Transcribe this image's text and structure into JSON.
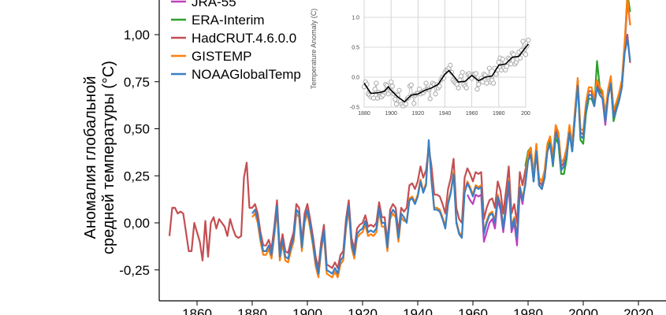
{
  "chart_data": [
    {
      "type": "line",
      "ylabel_lines": [
        "Аномалия глобальной",
        "средней температуры (°C)"
      ],
      "xlabel": "",
      "xlim": [
        1846,
        2022
      ],
      "ylim": [
        -0.41,
        1.2
      ],
      "x_ticks": [
        "1860",
        "1880",
        "1900",
        "1920",
        "1940",
        "1960",
        "1980",
        "2000",
        "2020"
      ],
      "y_ticks": [
        {
          "value": 1.0,
          "label": "1,00"
        },
        {
          "value": 0.75,
          "label": "0,75"
        },
        {
          "value": 0.5,
          "label": "0,50"
        },
        {
          "value": 0.25,
          "label": "0,25"
        },
        {
          "value": 0.0,
          "label": "0,00"
        },
        {
          "value": -0.25,
          "label": "-0,25"
        }
      ],
      "grid": false,
      "legend_position": "top-left",
      "series": [
        {
          "name": "HadCRUT.4.6.0.0",
          "color": "#c44e52",
          "start_year": 1850,
          "values": [
            -0.07,
            0.08,
            0.08,
            0.05,
            0.06,
            0.05,
            -0.05,
            -0.15,
            -0.15,
            0.0,
            -0.05,
            -0.1,
            -0.2,
            0.01,
            -0.18,
            0.0,
            0.03,
            -0.03,
            0.02,
            0.0,
            -0.02,
            -0.07,
            0.02,
            -0.03,
            -0.07,
            -0.08,
            -0.07,
            0.24,
            0.32,
            0.08,
            0.08,
            0.1,
            0.05,
            -0.05,
            -0.12,
            -0.12,
            -0.09,
            -0.14,
            -0.02,
            0.12,
            -0.15,
            -0.06,
            -0.15,
            -0.16,
            -0.1,
            -0.05,
            0.1,
            0.08,
            -0.1,
            0.05,
            0.1,
            0.02,
            -0.07,
            -0.18,
            -0.24,
            -0.1,
            -0.01,
            -0.22,
            -0.23,
            -0.24,
            -0.21,
            -0.24,
            -0.17,
            -0.15,
            0.02,
            0.12,
            -0.08,
            -0.14,
            -0.03,
            -0.01,
            0.0,
            0.04,
            -0.02,
            -0.01,
            -0.02,
            0.0,
            0.11,
            0.03,
            0.03,
            -0.1,
            0.07,
            0.1,
            0.08,
            -0.05,
            0.08,
            0.06,
            0.08,
            0.2,
            0.21,
            0.18,
            0.22,
            0.3,
            0.24,
            0.28,
            0.4,
            0.3,
            0.15,
            0.15,
            0.14,
            0.1,
            0.05,
            0.18,
            0.24,
            0.34,
            0.08,
            0.02,
            0.0,
            0.24,
            0.29,
            0.26,
            0.22,
            0.27,
            0.26,
            0.27,
            0.02,
            0.08,
            0.12,
            0.13,
            0.08,
            0.22,
            0.17,
            0.05,
            0.17,
            0.3,
            0.05,
            0.1,
            0.0,
            0.27,
            0.2,
            0.28,
            0.35,
            0.38,
            0.24,
            0.4,
            0.22,
            0.2,
            0.26,
            0.4,
            0.44,
            0.33,
            0.5,
            0.46,
            0.3,
            0.32,
            0.38,
            0.5,
            0.4,
            0.58,
            0.75,
            0.48,
            0.47,
            0.62,
            0.7,
            0.7,
            0.64,
            0.74,
            0.7,
            0.68,
            0.56,
            0.69,
            0.76,
            0.58,
            0.62,
            0.67,
            0.74,
            0.92,
            1.0,
            0.85
          ]
        },
        {
          "name": "GISTEMP",
          "color": "#ff7f0e",
          "start_year": 1880,
          "values": [
            0.03,
            0.05,
            0.0,
            -0.1,
            -0.17,
            -0.17,
            -0.14,
            -0.19,
            -0.07,
            0.07,
            -0.2,
            -0.11,
            -0.2,
            -0.21,
            -0.15,
            -0.1,
            0.05,
            0.03,
            -0.15,
            0.0,
            0.05,
            -0.03,
            -0.12,
            -0.23,
            -0.29,
            -0.15,
            -0.06,
            -0.27,
            -0.28,
            -0.29,
            -0.26,
            -0.29,
            -0.22,
            -0.2,
            -0.03,
            0.07,
            -0.13,
            -0.19,
            -0.08,
            -0.06,
            -0.05,
            -0.01,
            -0.07,
            -0.06,
            -0.07,
            -0.05,
            0.06,
            -0.02,
            -0.02,
            -0.15,
            0.02,
            0.05,
            0.03,
            -0.1,
            0.03,
            0.01,
            0.01,
            0.13,
            0.14,
            0.11,
            0.15,
            0.23,
            0.17,
            0.21,
            0.43,
            0.23,
            0.08,
            0.08,
            0.07,
            0.03,
            -0.02,
            0.11,
            0.17,
            0.27,
            0.01,
            -0.05,
            -0.07,
            0.17,
            0.22,
            0.19,
            0.15,
            0.2,
            0.19,
            0.2,
            -0.05,
            0.01,
            0.05,
            0.06,
            0.01,
            0.15,
            0.1,
            -0.02,
            0.1,
            0.23,
            -0.02,
            0.03,
            -0.07,
            0.2,
            0.13,
            0.21,
            0.37,
            0.4,
            0.26,
            0.42,
            0.24,
            0.22,
            0.28,
            0.42,
            0.46,
            0.35,
            0.52,
            0.48,
            0.32,
            0.34,
            0.4,
            0.52,
            0.42,
            0.6,
            0.77,
            0.5,
            0.49,
            0.64,
            0.72,
            0.72,
            0.66,
            0.76,
            0.72,
            0.7,
            0.58,
            0.71,
            0.78,
            0.6,
            0.64,
            0.69,
            0.76,
            0.96,
            1.2,
            1.05
          ]
        },
        {
          "name": "JRA-55",
          "color": "#bf40bf",
          "start_year": 1958,
          "values": [
            0.15,
            0.12,
            0.1,
            0.15,
            0.14,
            0.15,
            -0.1,
            -0.05,
            0.0,
            0.02,
            -0.03,
            0.12,
            0.07,
            -0.05,
            0.07,
            0.2,
            -0.05,
            0.0,
            -0.12,
            0.17,
            0.1,
            0.22,
            0.33,
            0.36,
            0.22,
            0.38,
            0.2,
            0.18,
            0.24,
            0.38,
            0.42,
            0.31,
            0.48,
            0.44,
            0.28,
            0.3,
            0.36,
            0.48,
            0.38,
            0.56,
            0.76,
            0.46,
            0.45,
            0.6,
            0.68,
            0.68,
            0.62,
            0.72,
            0.68,
            0.66,
            0.52,
            0.67,
            0.74,
            0.56,
            0.6,
            0.65,
            0.72,
            0.92,
            1.18,
            1.05
          ]
        },
        {
          "name": "ERA-Interim",
          "color": "#2ca02c",
          "start_year": 1979,
          "values": [
            0.3,
            0.38,
            0.4,
            0.22,
            0.4,
            0.2,
            0.18,
            0.24,
            0.4,
            0.44,
            0.3,
            0.45,
            0.42,
            0.26,
            0.26,
            0.34,
            0.5,
            0.38,
            0.56,
            0.75,
            0.44,
            0.42,
            0.58,
            0.66,
            0.66,
            0.62,
            0.86,
            0.72,
            0.68,
            0.54,
            0.7,
            0.74,
            0.54,
            0.6,
            0.68,
            0.72,
            0.94,
            1.22,
            1.12
          ]
        },
        {
          "name": "NOAAGlobalTemp",
          "color": "#3a7fc1",
          "start_year": 1880,
          "values": [
            0.05,
            0.07,
            0.02,
            -0.08,
            -0.15,
            -0.15,
            -0.12,
            -0.17,
            -0.05,
            0.09,
            -0.18,
            -0.09,
            -0.18,
            -0.19,
            -0.13,
            -0.08,
            0.07,
            0.05,
            -0.13,
            0.02,
            0.07,
            -0.01,
            -0.1,
            -0.21,
            -0.27,
            -0.13,
            -0.04,
            -0.25,
            -0.26,
            -0.27,
            -0.24,
            -0.27,
            -0.2,
            -0.18,
            -0.01,
            0.09,
            -0.11,
            -0.17,
            -0.06,
            -0.04,
            -0.03,
            0.01,
            -0.05,
            -0.04,
            -0.05,
            -0.03,
            0.08,
            0.0,
            0.0,
            -0.13,
            0.04,
            0.07,
            0.05,
            -0.08,
            0.05,
            0.03,
            0.0,
            0.12,
            0.13,
            0.1,
            0.14,
            0.22,
            0.16,
            0.2,
            0.44,
            0.22,
            0.07,
            0.07,
            0.06,
            0.02,
            -0.03,
            0.1,
            0.16,
            0.26,
            0.0,
            -0.06,
            -0.08,
            0.16,
            0.21,
            0.18,
            0.14,
            0.19,
            0.18,
            0.19,
            -0.06,
            0.0,
            0.04,
            0.05,
            0.0,
            0.14,
            0.09,
            -0.03,
            0.09,
            0.22,
            -0.03,
            0.02,
            -0.08,
            0.19,
            0.12,
            0.2,
            0.33,
            0.36,
            0.22,
            0.38,
            0.2,
            0.18,
            0.24,
            0.38,
            0.42,
            0.31,
            0.48,
            0.44,
            0.28,
            0.3,
            0.36,
            0.48,
            0.38,
            0.56,
            0.73,
            0.46,
            0.45,
            0.6,
            0.68,
            0.68,
            0.62,
            0.72,
            0.68,
            0.66,
            0.54,
            0.67,
            0.74,
            0.56,
            0.6,
            0.65,
            0.72,
            0.9,
            0.98,
            0.86
          ]
        }
      ],
      "legend_order": [
        "JRA-55",
        "ERA-Interim",
        "HadCRUT.4.6.0.0",
        "GISTEMP",
        "NOAAGlobalTemp"
      ]
    },
    {
      "type": "line",
      "ylabel": "Temperature Anomaly (C)",
      "xlim": [
        1880,
        2002
      ],
      "ylim": [
        -0.55,
        1.3
      ],
      "x_ticks": [
        "1880",
        "1900",
        "1920",
        "1940",
        "1960",
        "1980",
        "200"
      ],
      "y_ticks": [
        {
          "value": 1.0,
          "label": "1.0"
        },
        {
          "value": 0.5,
          "label": "0.5"
        },
        {
          "value": 0.0,
          "label": "0.0"
        },
        {
          "value": -0.5,
          "label": "-0.5"
        }
      ],
      "grid": true,
      "annual": {
        "color": "#b0b0b0",
        "start_year": 1880,
        "values": [
          -0.16,
          -0.08,
          -0.12,
          -0.28,
          -0.3,
          -0.33,
          -0.3,
          -0.35,
          -0.2,
          -0.1,
          -0.35,
          -0.25,
          -0.32,
          -0.33,
          -0.3,
          -0.25,
          -0.12,
          -0.14,
          -0.28,
          -0.18,
          -0.08,
          -0.15,
          -0.28,
          -0.37,
          -0.45,
          -0.3,
          -0.22,
          -0.4,
          -0.45,
          -0.48,
          -0.44,
          -0.45,
          -0.36,
          -0.34,
          -0.15,
          -0.13,
          -0.3,
          -0.44,
          -0.3,
          -0.27,
          -0.27,
          -0.2,
          -0.28,
          -0.25,
          -0.26,
          -0.22,
          -0.1,
          -0.2,
          -0.2,
          -0.36,
          -0.15,
          -0.1,
          -0.12,
          -0.28,
          -0.13,
          -0.18,
          -0.15,
          -0.05,
          0.0,
          -0.02,
          0.08,
          0.12,
          0.12,
          0.15,
          0.2,
          0.08,
          -0.05,
          -0.08,
          -0.1,
          -0.12,
          -0.18,
          -0.05,
          0.02,
          0.08,
          -0.12,
          -0.15,
          -0.18,
          0.05,
          0.06,
          0.03,
          -0.02,
          0.05,
          0.05,
          0.06,
          -0.2,
          -0.12,
          -0.05,
          -0.02,
          -0.08,
          0.05,
          0.03,
          -0.1,
          0.0,
          0.15,
          -0.08,
          -0.05,
          -0.1,
          0.15,
          0.05,
          0.12,
          0.25,
          0.32,
          0.12,
          0.3,
          0.15,
          0.12,
          0.18,
          0.32,
          0.3,
          0.22,
          0.4,
          0.38,
          0.22,
          0.25,
          0.3,
          0.42,
          0.32,
          0.45,
          0.6,
          0.4,
          0.38,
          0.52,
          0.62
        ]
      },
      "smoothed": {
        "color": "#000000",
        "x": [
          1880,
          1885,
          1890,
          1895,
          1898,
          1900,
          1905,
          1910,
          1915,
          1920,
          1925,
          1930,
          1935,
          1940,
          1943,
          1945,
          1950,
          1955,
          1960,
          1965,
          1970,
          1975,
          1980,
          1985,
          1990,
          1995,
          2000,
          2002
        ],
        "y": [
          -0.1,
          -0.27,
          -0.26,
          -0.24,
          -0.16,
          -0.22,
          -0.33,
          -0.41,
          -0.3,
          -0.28,
          -0.22,
          -0.18,
          -0.12,
          0.05,
          0.11,
          0.06,
          -0.08,
          -0.07,
          0.03,
          -0.06,
          0.0,
          0.02,
          0.2,
          0.22,
          0.33,
          0.35,
          0.5,
          0.55
        ]
      }
    }
  ]
}
